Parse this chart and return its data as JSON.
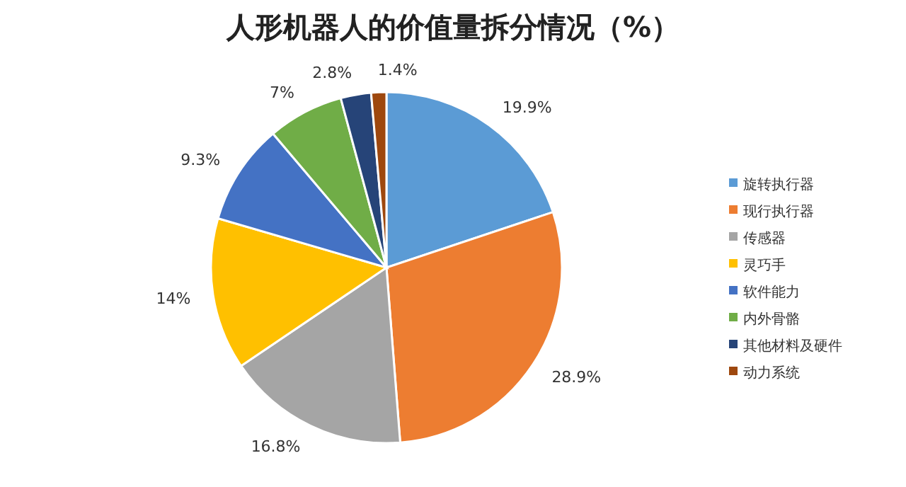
{
  "chart_data": {
    "type": "pie",
    "title": "人形机器人的价值量拆分情况（%）",
    "categories": [
      "旋转执行器",
      "现行执行器",
      "传感器",
      "灵巧手",
      "软件能力",
      "内外骨骼",
      "其他材料及硬件",
      "动力系统"
    ],
    "values": [
      19.9,
      28.9,
      16.8,
      14,
      9.3,
      7,
      2.8,
      1.4
    ],
    "value_labels": [
      "19.9%",
      "28.9%",
      "16.8%",
      "14%",
      "9.3%",
      "7%",
      "2.8%",
      "1.4%"
    ],
    "colors": [
      "#5b9bd5",
      "#ed7d31",
      "#a5a5a5",
      "#ffc000",
      "#4472c4",
      "#70ad47",
      "#264478",
      "#9e480e"
    ],
    "legend": "right"
  }
}
